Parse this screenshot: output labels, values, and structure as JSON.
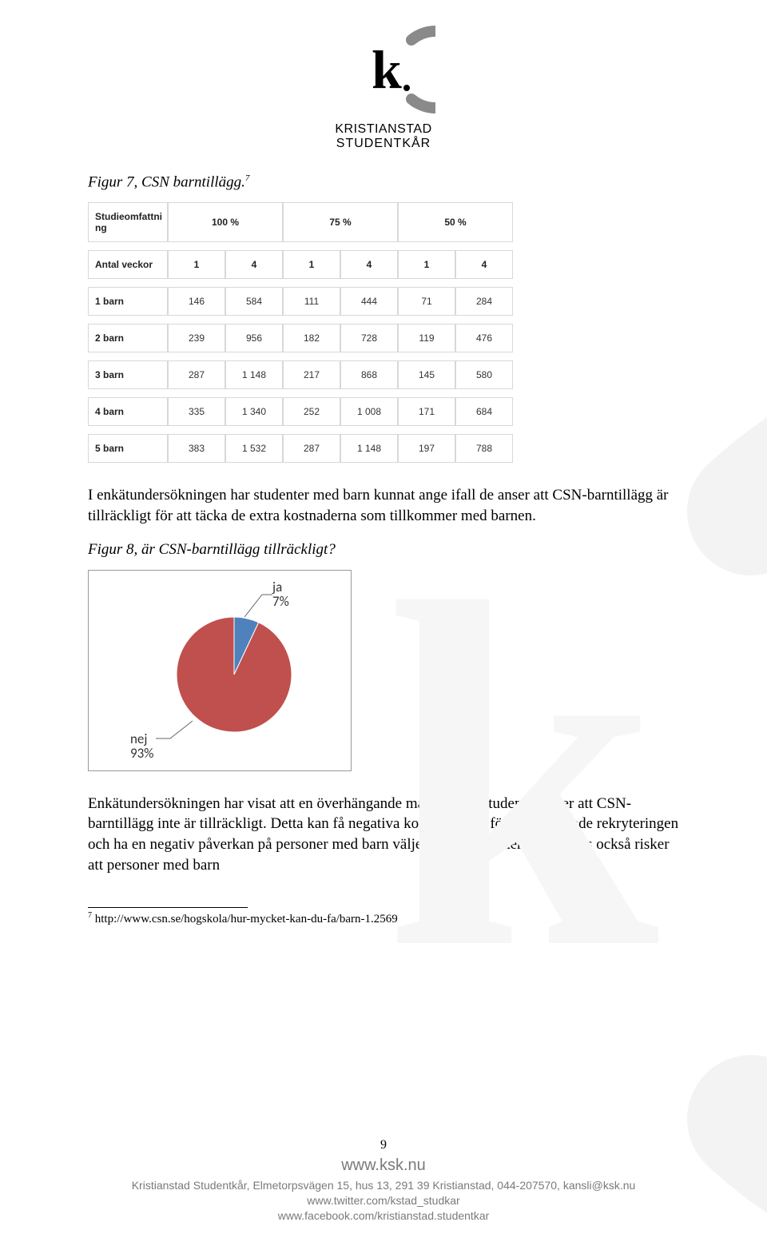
{
  "logo": {
    "line1": "KRISTIANSTAD",
    "line2": "STUDENTKÅR",
    "arc_color": "#8a8a8a",
    "k_color": "#000000"
  },
  "caption1": {
    "text": "Figur 7, CSN barntillägg.",
    "sup": "7"
  },
  "table": {
    "hdr_scope": "Studieomfattni ng",
    "scope_cols": [
      "100 %",
      "75 %",
      "50 %"
    ],
    "hdr_weeks": "Antal veckor",
    "week_cols": [
      "1",
      "4",
      "1",
      "4",
      "1",
      "4"
    ],
    "rows": [
      {
        "label": "1 barn",
        "cells": [
          "146",
          "584",
          "111",
          "444",
          "71",
          "284"
        ]
      },
      {
        "label": "2 barn",
        "cells": [
          "239",
          "956",
          "182",
          "728",
          "119",
          "476"
        ]
      },
      {
        "label": "3 barn",
        "cells": [
          "287",
          "1 148",
          "217",
          "868",
          "145",
          "580"
        ]
      },
      {
        "label": "4 barn",
        "cells": [
          "335",
          "1 340",
          "252",
          "1 008",
          "171",
          "684"
        ]
      },
      {
        "label": "5 barn",
        "cells": [
          "383",
          "1 532",
          "287",
          "1 148",
          "197",
          "788"
        ]
      }
    ],
    "border_color": "#d8d8d8",
    "text_color": "#333333",
    "font_size": 12
  },
  "para1": "I enkätundersökningen har studenter med barn kunnat ange ifall de anser att CSN-barntillägg är tillräckligt för att täcka de extra kostnaderna som tillkommer med barnen.",
  "caption2": "Figur 8, är CSN-barntillägg tillräckligt?",
  "pie": {
    "type": "pie",
    "values": [
      7,
      93
    ],
    "labels": [
      "ja",
      "nej"
    ],
    "percent_labels": [
      "7%",
      "93%"
    ],
    "colors": [
      "#4f81bd",
      "#c0504d"
    ],
    "background_color": "#ffffff",
    "border_color": "#999999",
    "label_fontsize": 17,
    "radius": 72,
    "start_angle_deg": -90
  },
  "para2": "Enkätundersökningen har visat att en överhängande majoritet av studenter anser att CSN-barntillägg inte är tillräckligt. Detta kan få negativa konsekvenser för den breddade rekryteringen och ha en negativ påverkan på personer med barn väljer att börja studera. Det finns också risker att personer med barn",
  "footnote": {
    "num": "7",
    "text": "http://www.csn.se/hogskola/hur-mycket-kan-du-fa/barn-1.2569"
  },
  "footer": {
    "page": "9",
    "site": "www.ksk.nu",
    "line1": "Kristianstad Studentkår, Elmetorpsvägen 15, hus 13, 291 39 Kristianstad, 044-207570, kansli@ksk.nu",
    "line2": "www.twitter.com/kstad_studkar",
    "line3": "www.facebook.com/kristianstad.studentkar"
  }
}
